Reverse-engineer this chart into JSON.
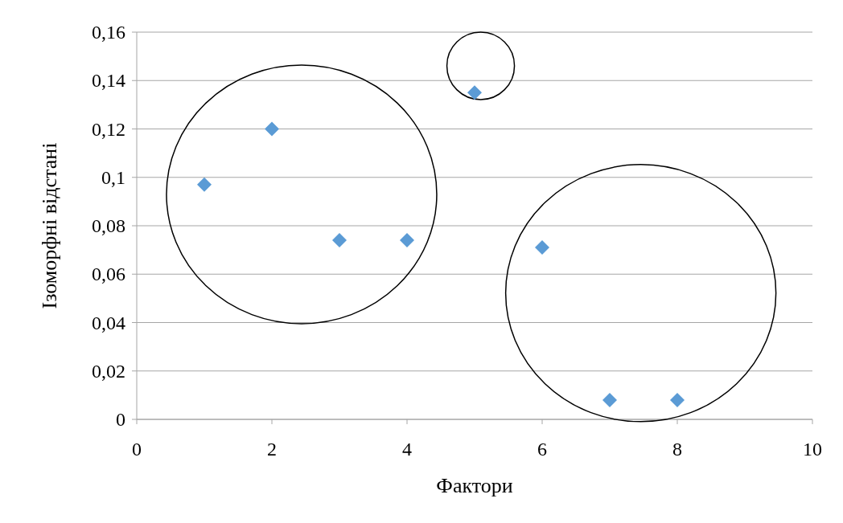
{
  "chart_data": {
    "type": "scatter",
    "xlabel": "Фактори",
    "ylabel": "Ізоморфні відстані",
    "x": [
      1,
      2,
      3,
      4,
      5,
      6,
      7,
      8
    ],
    "values": [
      0.097,
      0.12,
      0.074,
      0.074,
      0.135,
      0.071,
      0.008,
      0.008
    ],
    "color": "#5b9bd5",
    "marker": "diamond",
    "xlim": [
      0,
      10
    ],
    "xticks": [
      0,
      2,
      4,
      6,
      8,
      10
    ],
    "ylim": [
      0,
      0.16
    ],
    "yticks": [
      0,
      {
        "value": 0.02,
        "label": "0,02"
      },
      {
        "value": 0.04,
        "label": "0,04"
      },
      {
        "value": 0.06,
        "label": "0,06"
      },
      {
        "value": 0.08,
        "label": "0,08"
      },
      {
        "value": 0.1,
        "label": "0,1"
      },
      {
        "value": 0.12,
        "label": "0,12"
      },
      {
        "value": 0.14,
        "label": "0,14"
      },
      {
        "value": 0.16,
        "label": "0,16"
      }
    ],
    "grid": "y"
  }
}
